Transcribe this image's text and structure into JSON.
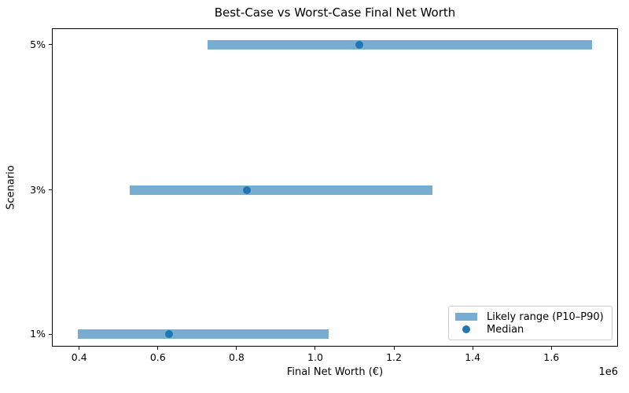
{
  "chart_data": {
    "type": "bar",
    "orientation": "horizontal",
    "title": "Best-Case vs Worst-Case Final Net Worth",
    "xlabel": "Final Net Worth (€)",
    "ylabel": "Scenario",
    "x_scale_offset_label": "1e6",
    "xlim": [
      330600,
      1769400
    ],
    "grid": false,
    "xticks": {
      "values": [
        400000,
        600000,
        800000,
        1000000,
        1200000,
        1400000,
        1600000
      ],
      "labels": [
        "0.4",
        "0.6",
        "0.8",
        "1.0",
        "1.2",
        "1.4",
        "1.6"
      ]
    },
    "categories": [
      "5%",
      "3%",
      "1%"
    ],
    "rows": [
      {
        "scenario": "5%",
        "p10": 726000,
        "p90": 1704000,
        "median": 1112000
      },
      {
        "scenario": "3%",
        "p10": 528000,
        "p90": 1298000,
        "median": 826000
      },
      {
        "scenario": "1%",
        "p10": 396000,
        "p90": 1034000,
        "median": 628000
      }
    ],
    "legend": {
      "position": "lower right",
      "entries": [
        {
          "label": "Likely range (P10–P90)",
          "marker": "bar-swatch"
        },
        {
          "label": "Median",
          "marker": "dot"
        }
      ]
    },
    "colors": {
      "range_bar": "#78add2",
      "median_dot": "#1f77b4",
      "spine": "#000000",
      "text": "#000000"
    }
  }
}
